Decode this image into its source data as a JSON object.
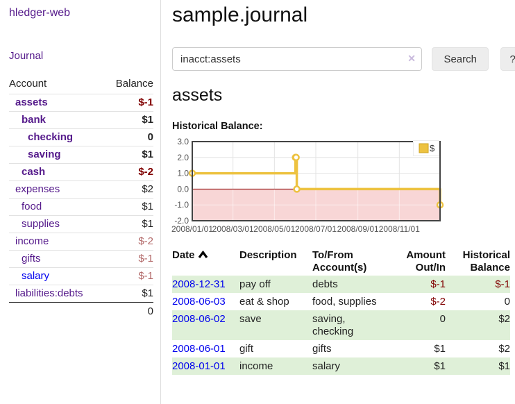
{
  "app": {
    "brand": "hledger-web",
    "nav_journal": "Journal"
  },
  "sidebar": {
    "header_account": "Account",
    "header_balance": "Balance",
    "accounts": [
      {
        "name": "assets",
        "depth": 1,
        "bold": true,
        "balance": "$-1",
        "neg": "strong"
      },
      {
        "name": "bank",
        "depth": 2,
        "bold": true,
        "balance": "$1"
      },
      {
        "name": "checking",
        "depth": 3,
        "bold": true,
        "balance": "0"
      },
      {
        "name": "saving",
        "depth": 3,
        "bold": true,
        "balance": "$1"
      },
      {
        "name": "cash",
        "depth": 2,
        "bold": true,
        "balance": "$-2",
        "neg": "strong"
      },
      {
        "name": "expenses",
        "depth": 1,
        "bold": false,
        "balance": "$2"
      },
      {
        "name": "food",
        "depth": 2,
        "bold": false,
        "balance": "$1"
      },
      {
        "name": "supplies",
        "depth": 2,
        "bold": false,
        "balance": "$1"
      },
      {
        "name": "income",
        "depth": 1,
        "bold": false,
        "balance": "$-2",
        "neg": "soft"
      },
      {
        "name": "gifts",
        "depth": 2,
        "bold": false,
        "balance": "$-1",
        "neg": "soft"
      },
      {
        "name": "salary",
        "depth": 2,
        "bold": false,
        "balance": "$-1",
        "neg": "soft",
        "link": "blue"
      },
      {
        "name": "liabilities:debts",
        "depth": 1,
        "bold": false,
        "balance": "$1"
      }
    ],
    "total": "0"
  },
  "main": {
    "title": "sample.journal",
    "search": {
      "value": "inacct:assets",
      "clear_icon": "✕",
      "button": "Search",
      "help_button": "?"
    },
    "account_heading": "assets",
    "chart_label": "Historical Balance:"
  },
  "chart_data": {
    "type": "line",
    "step": true,
    "title": "Historical Balance",
    "series": [
      {
        "name": "$",
        "color": "#EDC240",
        "points": [
          [
            "2008-01-01",
            1
          ],
          [
            "2008-06-01",
            2
          ],
          [
            "2008-06-02",
            2
          ],
          [
            "2008-06-03",
            0
          ],
          [
            "2008-12-31",
            -1
          ]
        ]
      }
    ],
    "xlim": [
      "2008-01-01",
      "2008-12-31"
    ],
    "ylim": [
      -2,
      3
    ],
    "y_ticks": [
      3,
      2,
      1,
      0,
      -1,
      -2
    ],
    "x_ticks": [
      "2008/01/01",
      "2008/03/01",
      "2008/05/01",
      "2008/07/01",
      "2008/09/01",
      "2008/11/01"
    ],
    "grid": true,
    "legend_position": "top-right",
    "negative_region_color": "#f8d6d6",
    "zero_line_color": "#8b0000",
    "plot_border_color": "#434343",
    "grid_color": "#e3e3e3",
    "tick_color": "#545454"
  },
  "register": {
    "headers": {
      "date": "Date",
      "description": "Description",
      "tofrom1": "To/From",
      "tofrom2": "Account(s)",
      "amount1": "Amount",
      "amount2": "Out/In",
      "balance1": "Historical",
      "balance2": "Balance"
    },
    "rows": [
      {
        "date": "2008-12-31",
        "description": "pay off",
        "accounts": "debts",
        "amount": "$-1",
        "amount_neg": true,
        "balance": "$-1",
        "balance_neg": true
      },
      {
        "date": "2008-06-03",
        "description": "eat & shop",
        "accounts": "food, supplies",
        "amount": "$-2",
        "amount_neg": true,
        "balance": "0",
        "balance_neg": false
      },
      {
        "date": "2008-06-02",
        "description": "save",
        "accounts": "saving, checking",
        "amount": "0",
        "amount_neg": false,
        "balance": "$2",
        "balance_neg": false
      },
      {
        "date": "2008-06-01",
        "description": "gift",
        "accounts": "gifts",
        "amount": "$1",
        "amount_neg": false,
        "balance": "$2",
        "balance_neg": false
      },
      {
        "date": "2008-01-01",
        "description": "income",
        "accounts": "salary",
        "amount": "$1",
        "amount_neg": false,
        "balance": "$1",
        "balance_neg": false
      }
    ]
  },
  "colors": {
    "link_purple": "#551a8b",
    "link_blue": "#0000ee",
    "negative_strong": "#800000",
    "negative_soft": "#b36a6a",
    "row_green": "#dff0d8",
    "series_gold": "#EDC240"
  }
}
